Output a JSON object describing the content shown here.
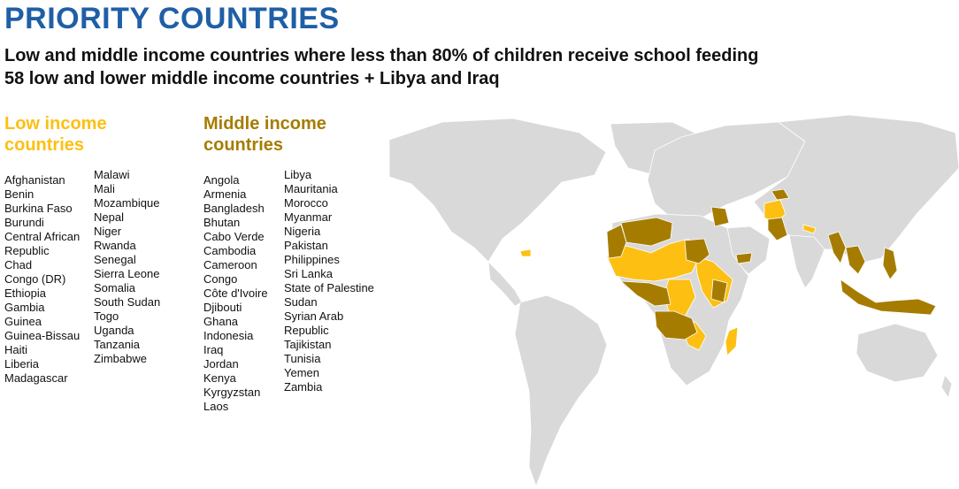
{
  "title": "PRIORITY COUNTRIES",
  "subtitle_line1": "Low and middle income countries where less than 80% of children receive school feeding",
  "subtitle_line2": "58 low and lower middle income countries + Libya and Iraq",
  "colors": {
    "title": "#1F5FA6",
    "low_income": "#FDBF12",
    "middle_income": "#A67C00",
    "land": "#D9D9D9",
    "ocean": "#FFFFFF"
  },
  "legend": {
    "low_income": {
      "label": "Low income countries",
      "col1": [
        "Afghanistan",
        "Benin",
        "Burkina Faso",
        "Burundi",
        "Central African",
        "Republic",
        "Chad",
        "Congo (DR)",
        "Ethiopia",
        "Gambia",
        "Guinea",
        "Guinea-Bissau",
        "Haiti",
        "Liberia",
        "Madagascar"
      ],
      "col2": [
        "Malawi",
        "Mali",
        "Mozambique",
        "Nepal",
        "Niger",
        "Rwanda",
        "Senegal",
        "Sierra Leone",
        "Somalia",
        "South Sudan",
        "Togo",
        "Uganda",
        "Tanzania",
        "Zimbabwe"
      ]
    },
    "middle_income": {
      "label": "Middle income countries",
      "col1": [
        "Angola",
        "Armenia",
        "Bangladesh",
        "Bhutan",
        "Cabo Verde",
        "Cambodia",
        "Cameroon",
        "Congo",
        "Côte d'Ivoire",
        "Djibouti",
        "Ghana",
        "Indonesia",
        "Iraq",
        "Jordan",
        "Kenya",
        "Kyrgyzstan",
        "Laos"
      ],
      "col2": [
        "Libya",
        "Mauritania",
        "Morocco",
        "Myanmar",
        "Nigeria",
        "Pakistan",
        "Philippines",
        "Sri Lanka",
        "State of Palestine",
        "Sudan",
        "Syrian Arab",
        "Republic",
        "Tajikistan",
        "Tunisia",
        "Yemen",
        "Zambia"
      ]
    }
  }
}
